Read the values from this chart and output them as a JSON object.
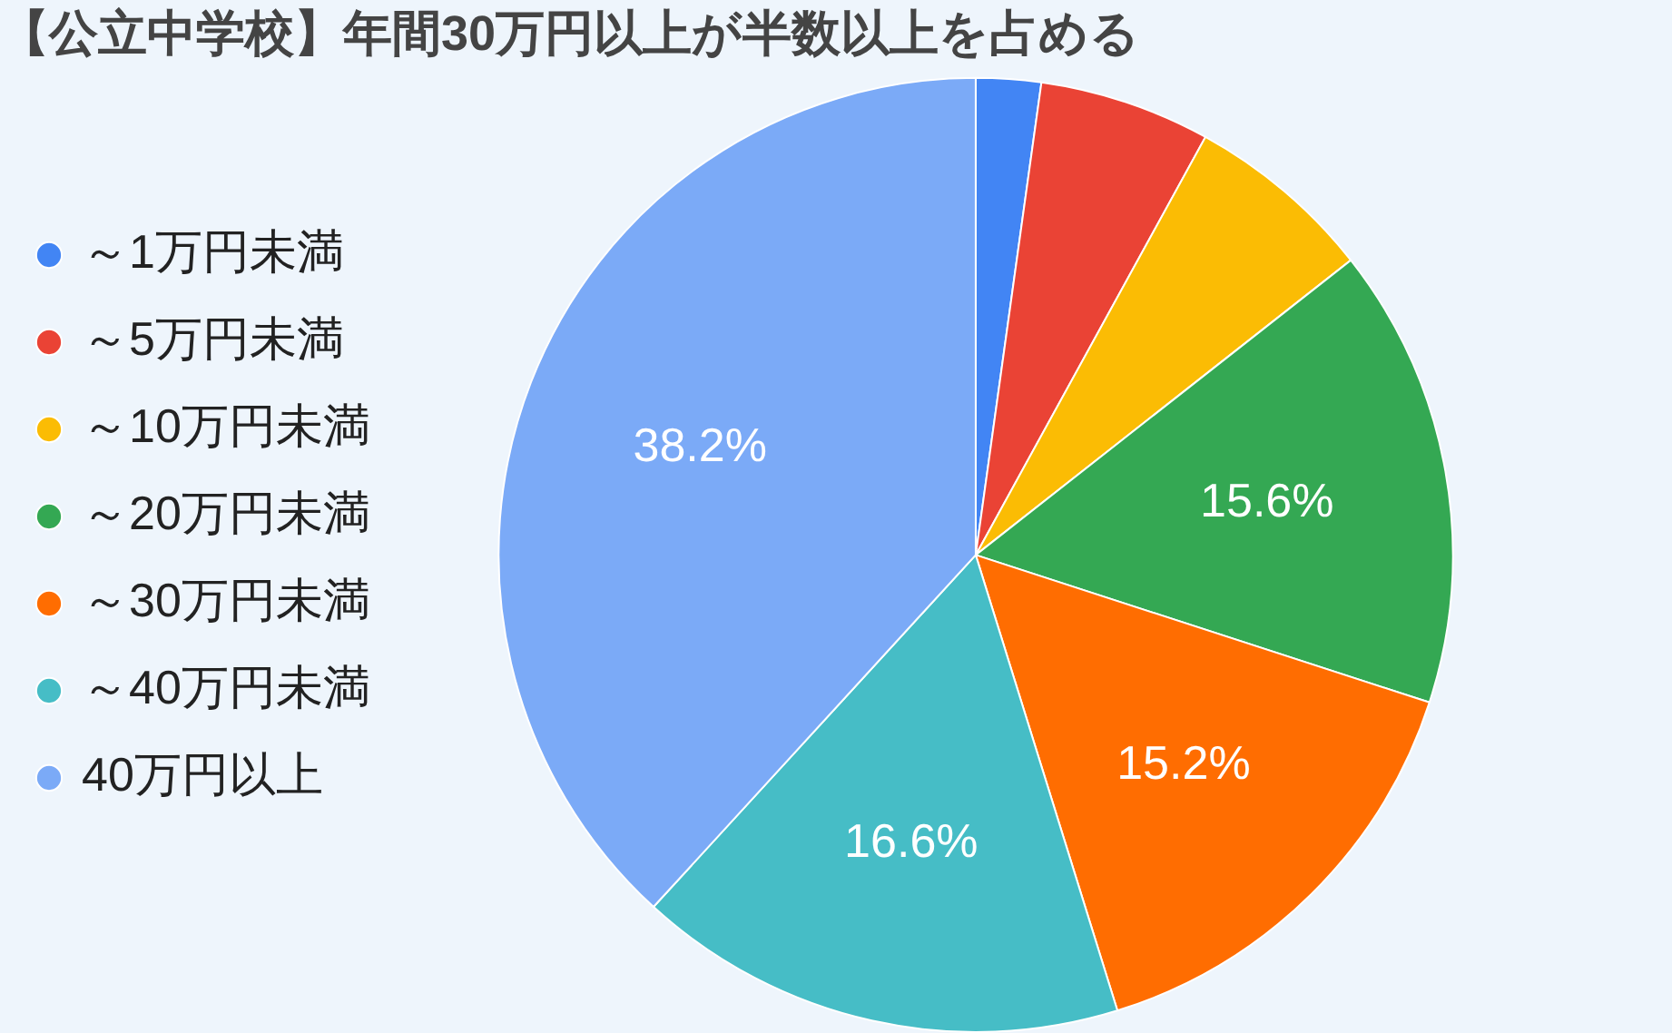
{
  "chart_data": {
    "type": "pie",
    "title": "【公立中学校】年間30万円以上が半数以上を占める",
    "categories": [
      "～1万円未満",
      "～5万円未満",
      "～10万円未満",
      "～20万円未満",
      "～30万円未満",
      "～40万円未満",
      "40万円以上"
    ],
    "values": [
      2.2,
      5.8,
      6.4,
      15.6,
      15.2,
      16.6,
      38.2
    ],
    "value_labels": [
      null,
      null,
      null,
      "15.6%",
      "15.2%",
      "16.6%",
      "38.2%"
    ],
    "colors": [
      "#4285f4",
      "#ea4335",
      "#fbbc04",
      "#34a853",
      "#ff6d01",
      "#46bdc6",
      "#7baaf7"
    ],
    "legend": "left"
  }
}
